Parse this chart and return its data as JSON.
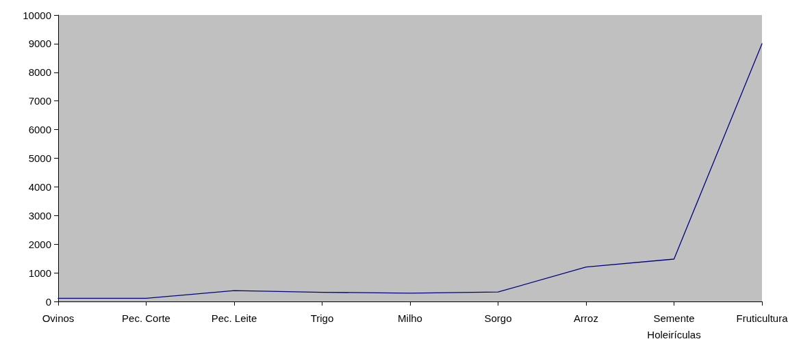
{
  "chart_data": {
    "type": "line",
    "categories": [
      "Ovinos",
      "Pec. Corte",
      "Pec. Leite",
      "Trigo",
      "Milho",
      "Sorgo",
      "Arroz",
      "Semente\nHoleirículas",
      "Fruticultura"
    ],
    "series": [
      {
        "color": "#000080",
        "values": [
          110,
          110,
          380,
          320,
          290,
          330,
          1200,
          1480,
          9000
        ]
      }
    ],
    "ylim": [
      0,
      10000
    ],
    "yticks": [
      0,
      1000,
      2000,
      3000,
      4000,
      5000,
      6000,
      7000,
      8000,
      9000,
      10000
    ],
    "marker": "none"
  }
}
